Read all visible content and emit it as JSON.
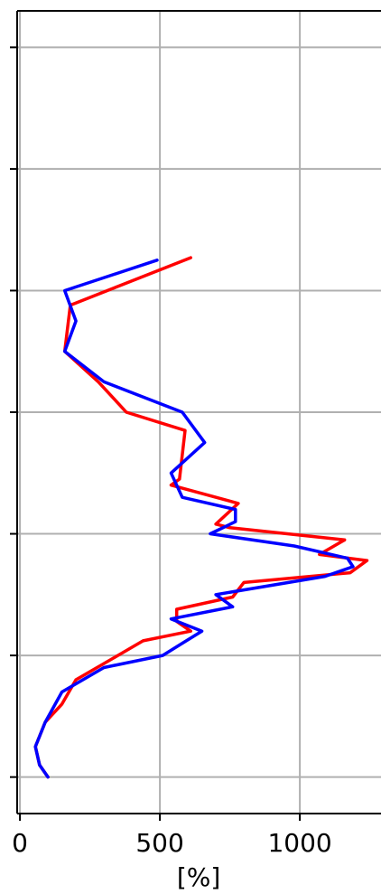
{
  "chart_data": {
    "type": "line",
    "xlabel": "[%]",
    "ylabel": "",
    "title": "",
    "xlim": [
      -10,
      1290
    ],
    "x_ticks": [
      0,
      500,
      1000
    ],
    "x_tick_labels": [
      "0",
      "500",
      "1000"
    ],
    "ylim": [
      -0.3,
      6.3
    ],
    "y_ticks": [
      0,
      1,
      2,
      3,
      4,
      5,
      6
    ],
    "grid": true,
    "series": [
      {
        "color": "#ff0000",
        "points": [
          [
            610,
            4.27
          ],
          [
            180,
            3.88
          ],
          [
            160,
            3.5
          ],
          [
            280,
            3.25
          ],
          [
            380,
            3.0
          ],
          [
            590,
            2.85
          ],
          [
            570,
            2.45
          ],
          [
            540,
            2.4
          ],
          [
            780,
            2.25
          ],
          [
            700,
            2.08
          ],
          [
            750,
            2.05
          ],
          [
            1160,
            1.95
          ],
          [
            1070,
            1.83
          ],
          [
            1240,
            1.78
          ],
          [
            1180,
            1.68
          ],
          [
            800,
            1.6
          ],
          [
            760,
            1.48
          ],
          [
            560,
            1.38
          ],
          [
            560,
            1.28
          ],
          [
            610,
            1.2
          ],
          [
            440,
            1.12
          ],
          [
            350,
            1.0
          ],
          [
            200,
            0.8
          ],
          [
            150,
            0.6
          ],
          [
            90,
            0.45
          ],
          [
            55,
            0.25
          ],
          [
            70,
            0.1
          ],
          [
            100,
            0.0
          ]
        ]
      },
      {
        "color": "#0000ff",
        "points": [
          [
            490,
            4.25
          ],
          [
            160,
            4.0
          ],
          [
            200,
            3.75
          ],
          [
            160,
            3.5
          ],
          [
            300,
            3.25
          ],
          [
            580,
            3.0
          ],
          [
            660,
            2.75
          ],
          [
            540,
            2.5
          ],
          [
            580,
            2.3
          ],
          [
            770,
            2.2
          ],
          [
            770,
            2.1
          ],
          [
            680,
            2.0
          ],
          [
            980,
            1.9
          ],
          [
            1170,
            1.8
          ],
          [
            1190,
            1.73
          ],
          [
            1090,
            1.65
          ],
          [
            700,
            1.5
          ],
          [
            760,
            1.4
          ],
          [
            540,
            1.3
          ],
          [
            650,
            1.2
          ],
          [
            580,
            1.1
          ],
          [
            510,
            1.0
          ],
          [
            300,
            0.9
          ],
          [
            150,
            0.7
          ],
          [
            90,
            0.45
          ],
          [
            55,
            0.25
          ],
          [
            70,
            0.1
          ],
          [
            100,
            0.0
          ]
        ]
      }
    ]
  }
}
